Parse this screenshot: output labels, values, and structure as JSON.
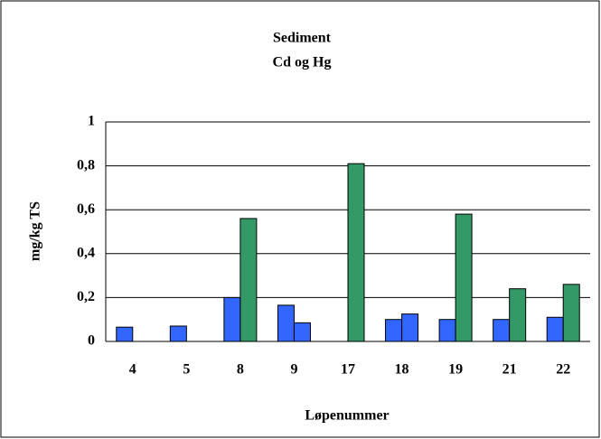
{
  "chart_data": {
    "type": "bar",
    "title": "Sediment",
    "subtitle": "Cd og Hg",
    "x_label": "Løpenummer",
    "y_label": "mg/kg TS",
    "categories": [
      "4",
      "5",
      "8",
      "9",
      "17",
      "18",
      "19",
      "21",
      "22"
    ],
    "series": [
      {
        "color": "#3366ff",
        "values": [
          0.065,
          0.07,
          0.2,
          0.165,
          null,
          0.1,
          0.1,
          0.1,
          0.11
        ]
      },
      {
        "color": "#339966",
        "point_colors": [
          null,
          null,
          "#339966",
          "#3366ff",
          "#339966",
          "#3366ff",
          "#339966",
          "#339966",
          "#339966"
        ],
        "values": [
          null,
          null,
          0.56,
          0.085,
          0.81,
          0.125,
          0.58,
          0.24,
          0.26
        ]
      }
    ],
    "ylim": [
      0,
      1
    ],
    "yticks": [
      0,
      {
        "value": 0.2,
        "label": "0,2"
      },
      {
        "value": 0.4,
        "label": "0,4"
      },
      {
        "value": 0.6,
        "label": "0,6"
      },
      {
        "value": 0.8,
        "label": "0,8"
      },
      1
    ],
    "grid": true
  }
}
